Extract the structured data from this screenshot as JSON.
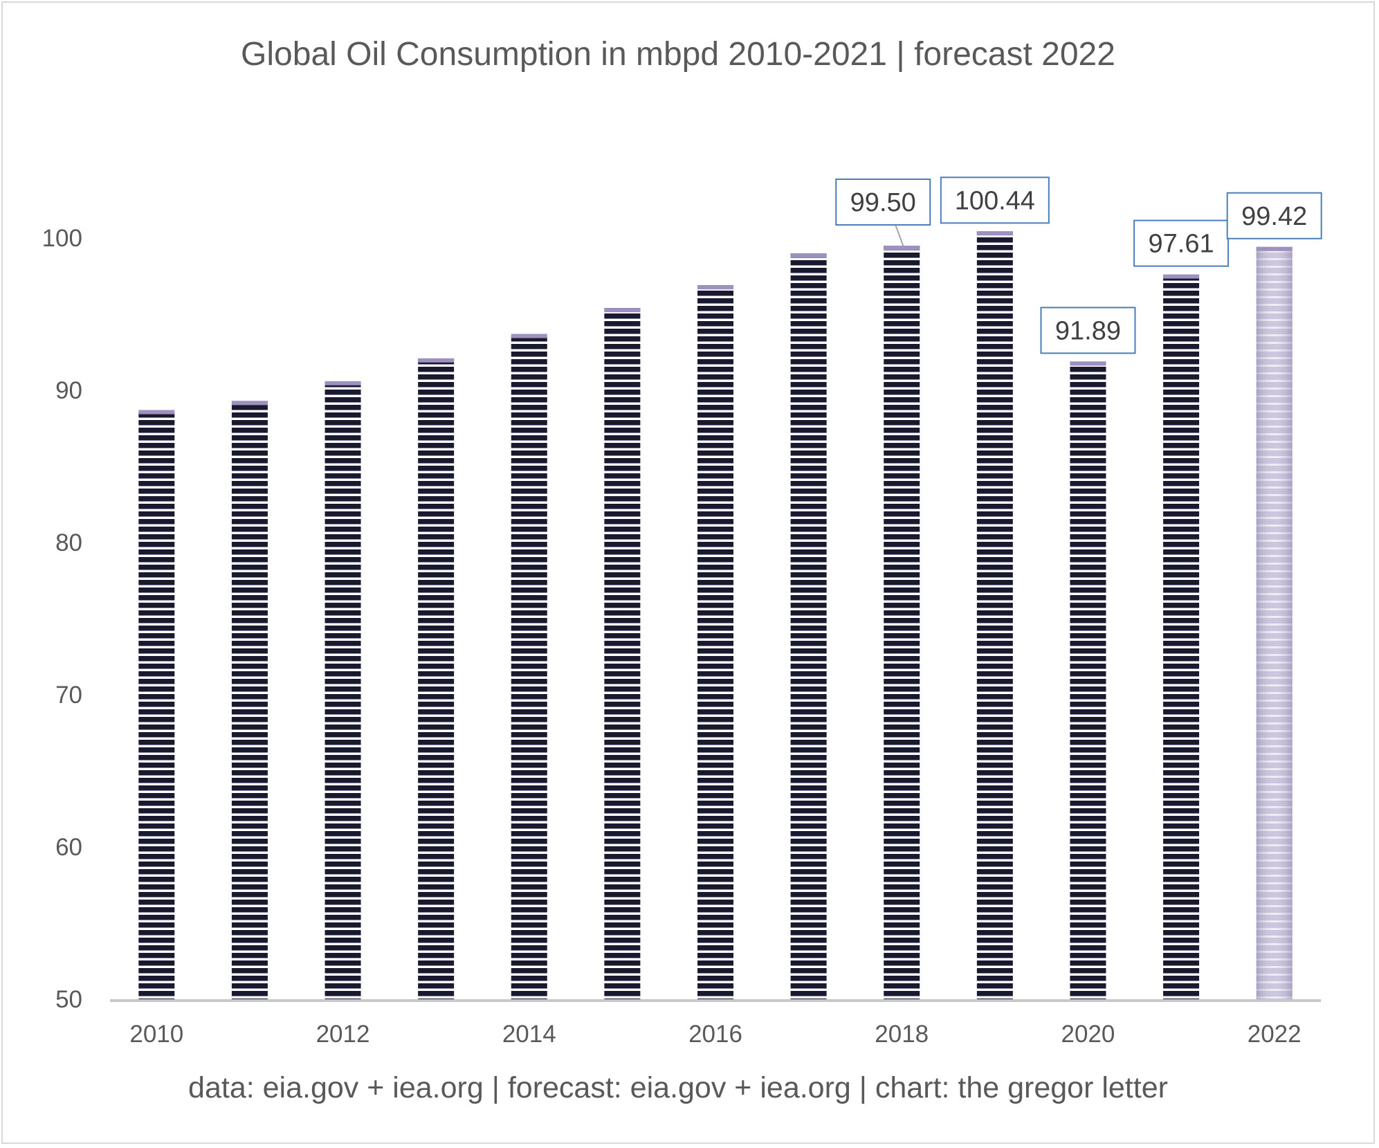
{
  "chart_data": {
    "type": "bar",
    "title": "Global Oil Consumption in mbpd 2010-2021 | forecast 2022",
    "source_note": "data: eia.gov + iea.org | forecast: eia.gov + iea.org | chart: the gregor letter",
    "categories": [
      "2010",
      "2011",
      "2012",
      "2013",
      "2014",
      "2015",
      "2016",
      "2017",
      "2018",
      "2019",
      "2020",
      "2021",
      "2022"
    ],
    "x_tick_labels": [
      "2010",
      "",
      "2012",
      "",
      "2014",
      "",
      "2016",
      "",
      "2018",
      "",
      "2020",
      "",
      "2022"
    ],
    "values": [
      88.7,
      89.3,
      90.6,
      92.1,
      93.7,
      95.4,
      96.9,
      99.0,
      99.5,
      100.44,
      91.89,
      97.61,
      99.42
    ],
    "data_labels": [
      "",
      "",
      "",
      "",
      "",
      "",
      "",
      "",
      "99.50",
      "100.44",
      "91.89",
      "97.61",
      "99.42"
    ],
    "forecast_index": 12,
    "ylim": [
      50,
      100
    ],
    "y_ticks": [
      "50",
      "60",
      "70",
      "80",
      "90",
      "100"
    ],
    "xlabel": "",
    "ylabel": "",
    "grid": false,
    "colors": {
      "bar_dark": "#1a1a2e",
      "bar_stripe": "#ffffff",
      "bar_cap": "#9e90c0",
      "forecast_a": "#c3bdd8",
      "forecast_b": "#e8e6ee",
      "label_border": "#4a7ebb",
      "axis": "#c8c8c8",
      "text": "#595959"
    }
  }
}
